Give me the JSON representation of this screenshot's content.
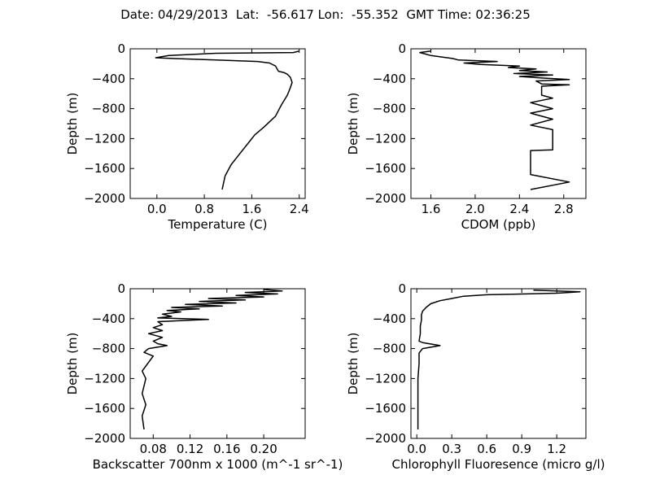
{
  "figure_title": "Date: 04/29/2013  Lat:  -56.617 Lon:  -55.352  GMT Time: 02:36:25",
  "colors": {
    "line": "#000000",
    "background": "#ffffff",
    "axes": "#000000"
  },
  "chart_data": [
    {
      "type": "line",
      "xlabel": "Temperature (C)",
      "ylabel": "Depth (m)",
      "xlim": [
        -0.45,
        2.5
      ],
      "ylim": [
        -2000,
        0
      ],
      "xticks": [
        0.0,
        0.8,
        1.6,
        2.4
      ],
      "xtick_labels": [
        "0.0",
        "0.8",
        "1.6",
        "2.4"
      ],
      "yticks": [
        0,
        -400,
        -800,
        -1200,
        -1600,
        -2000
      ],
      "ytick_labels": [
        "0",
        "−400",
        "−800",
        "−1200",
        "−1600",
        "−2000"
      ],
      "grid": false,
      "series": [
        {
          "x": [
            2.4,
            2.3,
            1.0,
            0.6,
            0.2,
            -0.02,
            0.3,
            1.0,
            1.7,
            1.9,
            2.0,
            2.05,
            2.15,
            2.2,
            2.25,
            2.28,
            2.25,
            2.2,
            2.1,
            2.0,
            1.8,
            1.65,
            1.55,
            1.4,
            1.25,
            1.15,
            1.1
          ],
          "y": [
            -30,
            -50,
            -60,
            -75,
            -90,
            -120,
            -130,
            -150,
            -170,
            -190,
            -230,
            -300,
            -320,
            -340,
            -380,
            -450,
            -520,
            -620,
            -750,
            -900,
            -1050,
            -1150,
            -1250,
            -1400,
            -1550,
            -1700,
            -1880
          ]
        }
      ]
    },
    {
      "type": "line",
      "xlabel": "CDOM (ppb)",
      "ylabel": "Depth (m)",
      "xlim": [
        1.42,
        3.0
      ],
      "ylim": [
        -2000,
        0
      ],
      "xticks": [
        1.6,
        2.0,
        2.4,
        2.8
      ],
      "xtick_labels": [
        "1.6",
        "2.0",
        "2.4",
        "2.8"
      ],
      "yticks": [
        0,
        -400,
        -800,
        -1200,
        -1600,
        -2000
      ],
      "ytick_labels": [
        "0",
        "−400",
        "−800",
        "−1200",
        "−1600",
        "−2000"
      ],
      "grid": false,
      "series": [
        {
          "x": [
            1.6,
            1.5,
            1.55,
            1.6,
            1.7,
            1.8,
            1.85,
            2.2,
            1.9,
            2.05,
            2.4,
            2.3,
            2.55,
            2.4,
            2.65,
            2.35,
            2.7,
            2.4,
            2.6,
            2.85,
            2.55,
            2.6,
            2.85,
            2.6,
            2.6,
            2.7,
            2.5,
            2.7,
            2.5,
            2.7,
            2.5,
            2.7,
            2.7,
            2.5,
            2.5,
            2.85,
            2.5
          ],
          "y": [
            -30,
            -50,
            -70,
            -90,
            -110,
            -130,
            -150,
            -170,
            -190,
            -210,
            -230,
            -250,
            -270,
            -290,
            -310,
            -330,
            -350,
            -370,
            -390,
            -410,
            -430,
            -470,
            -480,
            -500,
            -620,
            -660,
            -720,
            -800,
            -860,
            -940,
            -1020,
            -1080,
            -1350,
            -1360,
            -1680,
            -1780,
            -1880
          ]
        }
      ]
    },
    {
      "type": "line",
      "xlabel": "Backscatter 700nm x 1000 (m^-1 sr^-1)",
      "ylabel": "Depth (m)",
      "xlim": [
        0.055,
        0.245
      ],
      "ylim": [
        -2000,
        0
      ],
      "xticks": [
        0.08,
        0.12,
        0.16,
        0.2
      ],
      "xtick_labels": [
        "0.08",
        "0.12",
        "0.16",
        "0.20"
      ],
      "yticks": [
        0,
        -400,
        -800,
        -1200,
        -1600,
        -2000
      ],
      "ytick_labels": [
        "0",
        "−400",
        "−800",
        "−1200",
        "−1600",
        "−2000"
      ],
      "grid": false,
      "series": [
        {
          "x": [
            0.2,
            0.22,
            0.18,
            0.215,
            0.17,
            0.2,
            0.14,
            0.18,
            0.13,
            0.17,
            0.115,
            0.155,
            0.1,
            0.13,
            0.095,
            0.11,
            0.09,
            0.1,
            0.085,
            0.14,
            0.085,
            0.09,
            0.08,
            0.09,
            0.075,
            0.09,
            0.08,
            0.085,
            0.095,
            0.075,
            0.07,
            0.08,
            0.074,
            0.068,
            0.072,
            0.07,
            0.068,
            0.072,
            0.068,
            0.07
          ],
          "y": [
            -10,
            -30,
            -50,
            -70,
            -90,
            -110,
            -130,
            -150,
            -170,
            -190,
            -210,
            -230,
            -250,
            -270,
            -290,
            -310,
            -340,
            -370,
            -390,
            -410,
            -440,
            -480,
            -520,
            -560,
            -600,
            -650,
            -700,
            -735,
            -760,
            -800,
            -850,
            -900,
            -1000,
            -1100,
            -1200,
            -1300,
            -1400,
            -1550,
            -1700,
            -1880
          ]
        }
      ]
    },
    {
      "type": "line",
      "xlabel": "Chlorophyll Fluoresence (micro g/l)",
      "ylabel": "Depth (m)",
      "xlim": [
        -0.05,
        1.45
      ],
      "ylim": [
        -2000,
        0
      ],
      "xticks": [
        0.0,
        0.3,
        0.6,
        0.9,
        1.2
      ],
      "xtick_labels": [
        "0.0",
        "0.3",
        "0.6",
        "0.9",
        "1.2"
      ],
      "yticks": [
        0,
        -400,
        -800,
        -1200,
        -1600,
        -2000
      ],
      "ytick_labels": [
        "0",
        "−400",
        "−800",
        "−1200",
        "−1600",
        "−2000"
      ],
      "grid": false,
      "series": [
        {
          "x": [
            1.0,
            1.4,
            1.2,
            0.6,
            0.4,
            0.3,
            0.2,
            0.12,
            0.08,
            0.05,
            0.04,
            0.04,
            0.03,
            0.03,
            0.02,
            0.05,
            0.2,
            0.05,
            0.02,
            0.02,
            0.01,
            0.01,
            0.01,
            0.01
          ],
          "y": [
            -20,
            -40,
            -60,
            -80,
            -100,
            -130,
            -160,
            -200,
            -250,
            -300,
            -350,
            -420,
            -500,
            -600,
            -700,
            -720,
            -760,
            -800,
            -860,
            -1000,
            -1200,
            -1400,
            -1600,
            -1880
          ]
        }
      ]
    }
  ]
}
